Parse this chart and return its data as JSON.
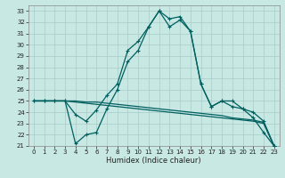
{
  "xlabel": "Humidex (Indice chaleur)",
  "xlim": [
    -0.5,
    23.5
  ],
  "ylim": [
    21,
    33.5
  ],
  "yticks": [
    21,
    22,
    23,
    24,
    25,
    26,
    27,
    28,
    29,
    30,
    31,
    32,
    33
  ],
  "xticks": [
    0,
    1,
    2,
    3,
    4,
    5,
    6,
    7,
    8,
    9,
    10,
    11,
    12,
    13,
    14,
    15,
    16,
    17,
    18,
    19,
    20,
    21,
    22,
    23
  ],
  "bg_color": "#c8e8e4",
  "grid_color": "#a8ccc8",
  "line_color": "#006060",
  "line_width": 0.9,
  "marker_size": 3.5,
  "curve1_y": [
    25.0,
    25.0,
    25.0,
    25.0,
    23.8,
    23.2,
    24.2,
    25.5,
    26.5,
    29.5,
    30.3,
    31.6,
    33.0,
    31.6,
    32.2,
    31.2,
    26.5,
    24.5,
    25.0,
    25.0,
    24.3,
    24.0,
    23.2,
    21.0
  ],
  "curve2_y": [
    25.0,
    25.0,
    25.0,
    25.0,
    21.2,
    22.0,
    22.2,
    24.3,
    26.0,
    28.5,
    29.5,
    31.6,
    33.0,
    32.3,
    32.5,
    31.2,
    26.5,
    24.5,
    25.0,
    24.5,
    24.3,
    23.5,
    22.2,
    21.0
  ],
  "flat1_y": [
    25.0,
    25.0,
    25.0,
    25.0,
    24.9,
    24.8,
    24.7,
    24.6,
    24.5,
    24.4,
    24.3,
    24.2,
    24.1,
    24.0,
    23.9,
    23.8,
    23.7,
    23.6,
    23.5,
    23.4,
    23.3,
    23.2,
    23.0,
    21.0
  ],
  "flat2_y": [
    25.0,
    25.0,
    25.0,
    25.0,
    25.0,
    24.9,
    24.9,
    24.8,
    24.7,
    24.6,
    24.5,
    24.4,
    24.3,
    24.2,
    24.1,
    24.0,
    23.9,
    23.8,
    23.7,
    23.5,
    23.4,
    23.3,
    23.1,
    21.0
  ]
}
